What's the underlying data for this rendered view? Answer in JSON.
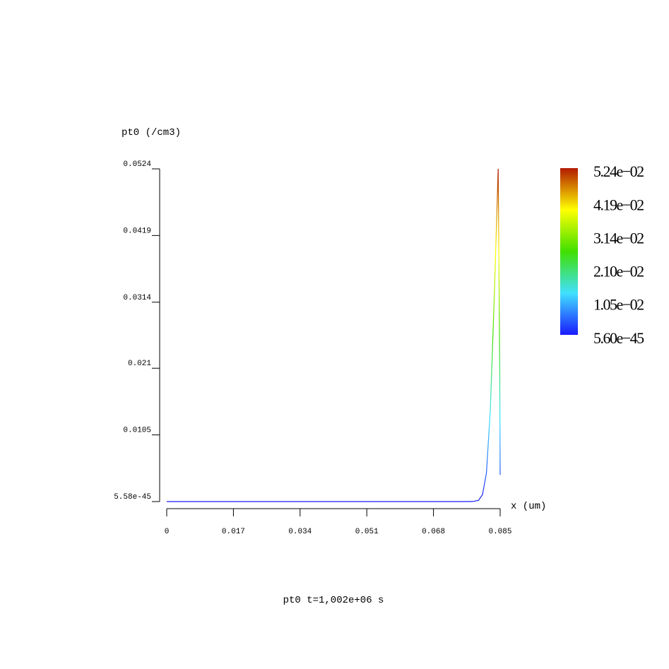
{
  "chart_data": {
    "type": "line",
    "y_label": "pt0 (/cm3)",
    "x_label": "x (um)",
    "title": "pt0 t=1,002e+06 s",
    "x": [
      0,
      0.075,
      0.078,
      0.0795,
      0.0805,
      0.0815,
      0.0825,
      0.0835,
      0.0845,
      0.0849,
      0.085
    ],
    "series": [
      {
        "name": "pt0",
        "values": [
          0,
          0,
          1e-05,
          0.0002,
          0.0011,
          0.0045,
          0.0145,
          0.0323,
          0.0524,
          0.02,
          0.0042
        ]
      }
    ],
    "xlim": [
      0,
      0.085
    ],
    "xticks": [
      0,
      0.017,
      0.034,
      0.051,
      0.068,
      0.085
    ],
    "ylim": [
      5.58e-45,
      0.0524
    ],
    "yticks": [
      5.58e-45,
      0.0105,
      0.021,
      0.0314,
      0.0419,
      0.0524
    ],
    "colormap": [
      "#1a1aff",
      "#40e0ff",
      "#40e000",
      "#ffff00",
      "#b21a00"
    ],
    "clim": [
      5.6e-45,
      0.0524
    ],
    "colorbar_ticks": [
      {
        "value": 5.6e-45,
        "label": "5.60e−45"
      },
      {
        "value": 0.0105,
        "label": "1.05e−02"
      },
      {
        "value": 0.021,
        "label": "2.10e−02"
      },
      {
        "value": 0.0314,
        "label": "3.14e−02"
      },
      {
        "value": 0.0419,
        "label": "4.19e−02"
      },
      {
        "value": 0.0524,
        "label": "5.24e−02"
      }
    ]
  }
}
